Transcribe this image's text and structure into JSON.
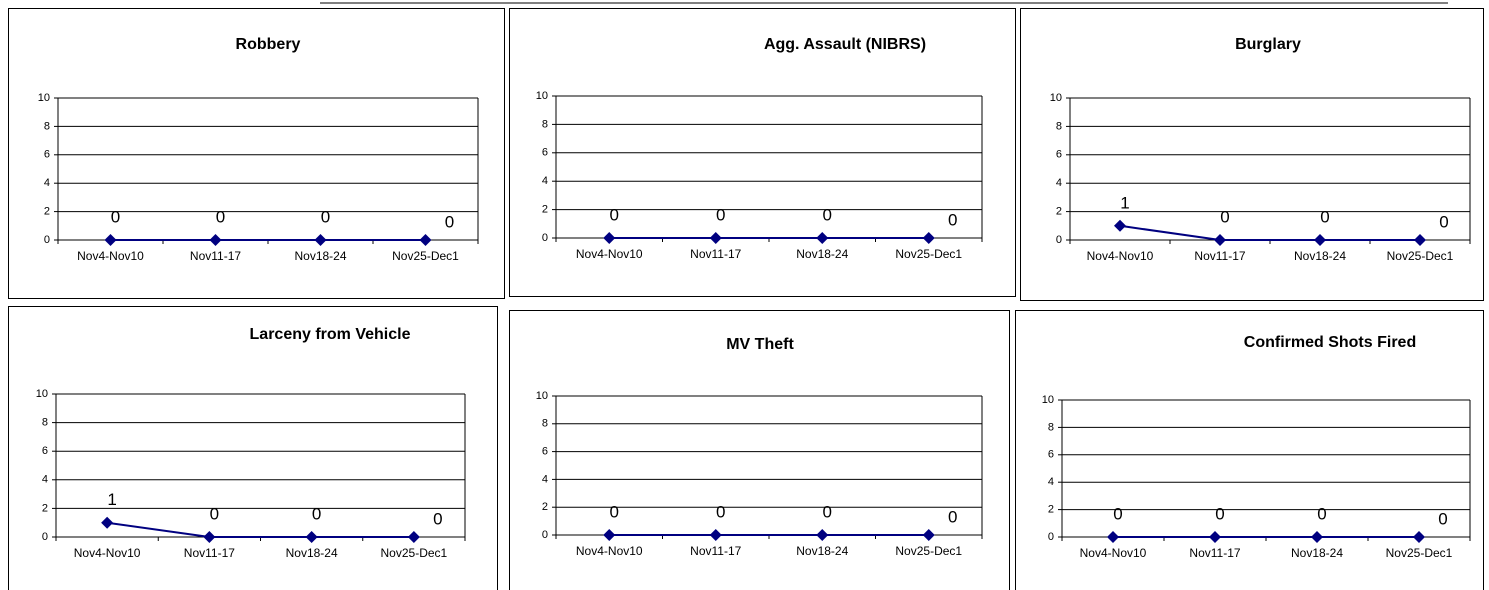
{
  "chart_data": [
    {
      "type": "line",
      "title": "Robbery",
      "categories": [
        "Nov4-Nov10",
        "Nov11-17",
        "Nov18-24",
        "Nov25-Dec1"
      ],
      "values": [
        0,
        0,
        0,
        0
      ],
      "color": "#000080",
      "ylim": [
        0,
        10
      ],
      "yticks": [
        0,
        2,
        4,
        6,
        8,
        10
      ],
      "grid": true
    },
    {
      "type": "line",
      "title": "Agg. Assault (NIBRS)",
      "categories": [
        "Nov4-Nov10",
        "Nov11-17",
        "Nov18-24",
        "Nov25-Dec1"
      ],
      "values": [
        0,
        0,
        0,
        0
      ],
      "color": "#000080",
      "ylim": [
        0,
        10
      ],
      "yticks": [
        0,
        2,
        4,
        6,
        8,
        10
      ],
      "grid": true
    },
    {
      "type": "line",
      "title": "Burglary",
      "categories": [
        "Nov4-Nov10",
        "Nov11-17",
        "Nov18-24",
        "Nov25-Dec1"
      ],
      "values": [
        1,
        0,
        0,
        0
      ],
      "color": "#000080",
      "ylim": [
        0,
        10
      ],
      "yticks": [
        0,
        2,
        4,
        6,
        8,
        10
      ],
      "grid": true
    },
    {
      "type": "line",
      "title": "Larceny from Vehicle",
      "categories": [
        "Nov4-Nov10",
        "Nov11-17",
        "Nov18-24",
        "Nov25-Dec1"
      ],
      "values": [
        1,
        0,
        0,
        0
      ],
      "color": "#000080",
      "ylim": [
        0,
        10
      ],
      "yticks": [
        0,
        2,
        4,
        6,
        8,
        10
      ],
      "grid": true
    },
    {
      "type": "line",
      "title": "MV Theft",
      "categories": [
        "Nov4-Nov10",
        "Nov11-17",
        "Nov18-24",
        "Nov25-Dec1"
      ],
      "values": [
        0,
        0,
        0,
        0
      ],
      "color": "#000080",
      "ylim": [
        0,
        10
      ],
      "yticks": [
        0,
        2,
        4,
        6,
        8,
        10
      ],
      "grid": true
    },
    {
      "type": "line",
      "title": "Confirmed Shots Fired",
      "categories": [
        "Nov4-Nov10",
        "Nov11-17",
        "Nov18-24",
        "Nov25-Dec1"
      ],
      "values": [
        0,
        0,
        0,
        0
      ],
      "color": "#000080",
      "ylim": [
        0,
        10
      ],
      "yticks": [
        0,
        2,
        4,
        6,
        8,
        10
      ],
      "grid": true
    }
  ]
}
